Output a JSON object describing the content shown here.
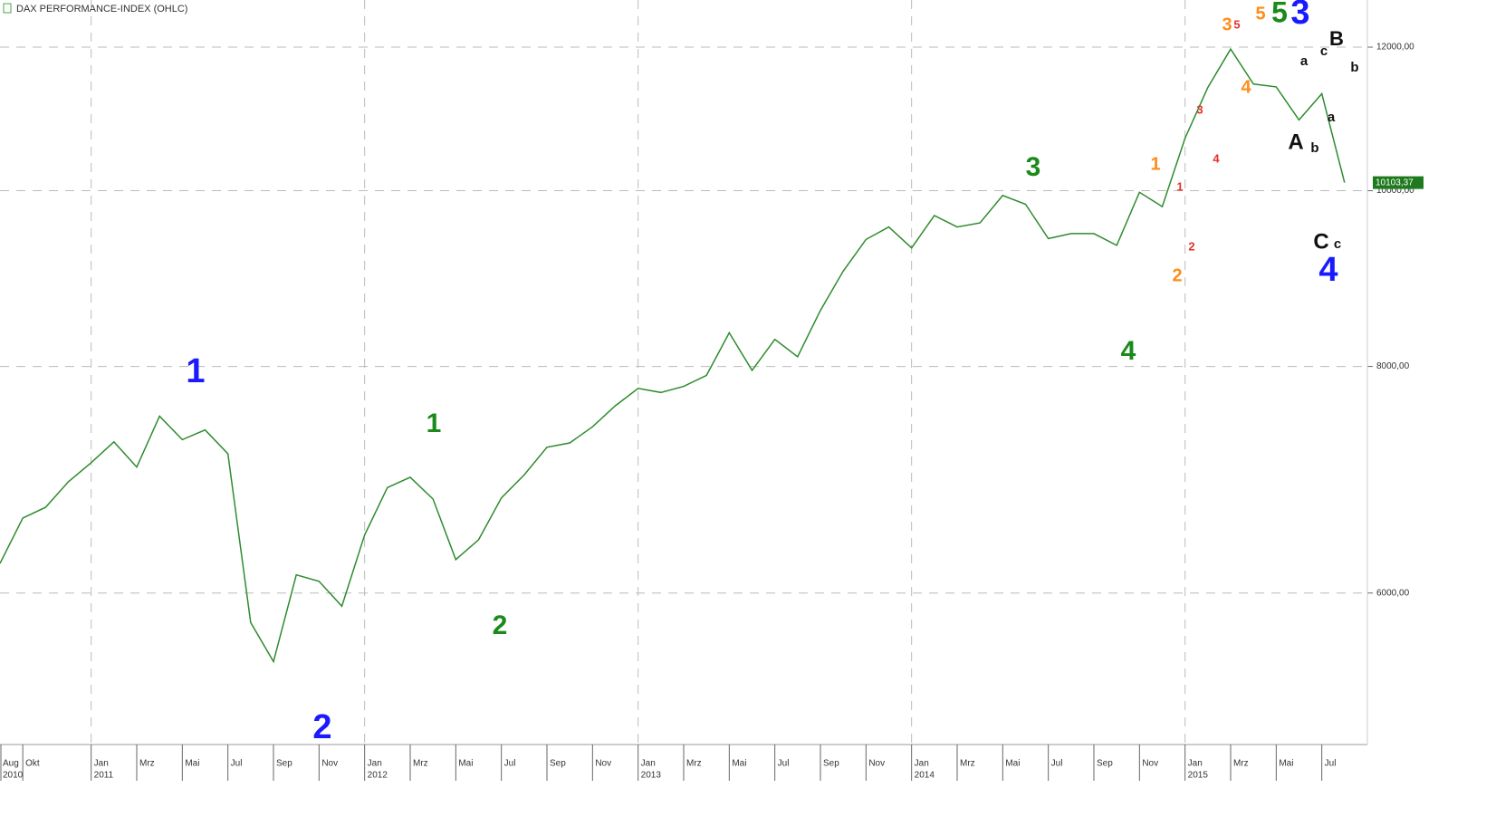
{
  "chart_data": {
    "type": "line",
    "title": "DAX PERFORMANCE-INDEX  (OHLC)",
    "x": [
      "2010-09",
      "2010-10",
      "2010-11",
      "2010-12",
      "2011-01",
      "2011-02",
      "2011-03",
      "2011-04",
      "2011-05",
      "2011-06",
      "2011-07",
      "2011-08",
      "2011-09",
      "2011-10",
      "2011-11",
      "2011-12",
      "2012-01",
      "2012-02",
      "2012-03",
      "2012-04",
      "2012-05",
      "2012-06",
      "2012-07",
      "2012-08",
      "2012-09",
      "2012-10",
      "2012-11",
      "2012-12",
      "2013-01",
      "2013-02",
      "2013-03",
      "2013-04",
      "2013-05",
      "2013-06",
      "2013-07",
      "2013-08",
      "2013-09",
      "2013-10",
      "2013-11",
      "2013-12",
      "2014-01",
      "2014-02",
      "2014-03",
      "2014-04",
      "2014-05",
      "2014-06",
      "2014-07",
      "2014-08",
      "2014-09",
      "2014-10",
      "2014-11",
      "2014-12",
      "2015-01",
      "2015-02",
      "2015-03",
      "2015-04",
      "2015-05",
      "2015-06",
      "2015-07",
      "2015-08"
    ],
    "series": [
      {
        "color": "#2e8b2e",
        "values": [
          6230,
          6600,
          6690,
          6910,
          7080,
          7270,
          7040,
          7510,
          7290,
          7380,
          7160,
          5780,
          5500,
          6140,
          6090,
          5900,
          6460,
          6860,
          6950,
          6760,
          6260,
          6420,
          6770,
          6970,
          7220,
          7260,
          7410,
          7610,
          7780,
          7740,
          7800,
          7910,
          8350,
          7960,
          8280,
          8100,
          8590,
          9030,
          9400,
          9550,
          9300,
          9690,
          9550,
          9600,
          9940,
          9830,
          9410,
          9470,
          9470,
          9330,
          9980,
          9800,
          10690,
          11400,
          11970,
          11450,
          11410,
          10940,
          11310,
          10103.37
        ]
      }
    ],
    "xlim": [
      "2010-09",
      "2015-09"
    ],
    "ylim": [
      4950,
      12740
    ],
    "log_y": true,
    "grid": true,
    "yticks": [
      {
        "value": 6000,
        "label": "6000,00"
      },
      {
        "value": 8000,
        "label": "8000,00"
      },
      {
        "value": 10000,
        "label": "10000,00"
      },
      {
        "value": 12000,
        "label": "12000,00"
      }
    ],
    "xticks": [
      {
        "value": "2010-08",
        "label": "Aug"
      },
      {
        "value": "2010-10",
        "label": "Okt"
      },
      {
        "value": "2011-01",
        "label": "Jan"
      },
      {
        "value": "2011-03",
        "label": "Mrz"
      },
      {
        "value": "2011-05",
        "label": "Mai"
      },
      {
        "value": "2011-07",
        "label": "Jul"
      },
      {
        "value": "2011-09",
        "label": "Sep"
      },
      {
        "value": "2011-11",
        "label": "Nov"
      },
      {
        "value": "2012-01",
        "label": "Jan"
      },
      {
        "value": "2012-03",
        "label": "Mrz"
      },
      {
        "value": "2012-05",
        "label": "Mai"
      },
      {
        "value": "2012-07",
        "label": "Jul"
      },
      {
        "value": "2012-09",
        "label": "Sep"
      },
      {
        "value": "2012-11",
        "label": "Nov"
      },
      {
        "value": "2013-01",
        "label": "Jan"
      },
      {
        "value": "2013-03",
        "label": "Mrz"
      },
      {
        "value": "2013-05",
        "label": "Mai"
      },
      {
        "value": "2013-07",
        "label": "Jul"
      },
      {
        "value": "2013-09",
        "label": "Sep"
      },
      {
        "value": "2013-11",
        "label": "Nov"
      },
      {
        "value": "2014-01",
        "label": "Jan"
      },
      {
        "value": "2014-03",
        "label": "Mrz"
      },
      {
        "value": "2014-05",
        "label": "Mai"
      },
      {
        "value": "2014-07",
        "label": "Jul"
      },
      {
        "value": "2014-09",
        "label": "Sep"
      },
      {
        "value": "2014-11",
        "label": "Nov"
      },
      {
        "value": "2015-01",
        "label": "Jan"
      },
      {
        "value": "2015-03",
        "label": "Mrz"
      },
      {
        "value": "2015-05",
        "label": "Mai"
      },
      {
        "value": "2015-07",
        "label": "Jul"
      }
    ],
    "year_labels": [
      {
        "value": "2010-08",
        "label": "2010"
      },
      {
        "value": "2011-01",
        "label": "2011"
      },
      {
        "value": "2012-01",
        "label": "2012"
      },
      {
        "value": "2013-01",
        "label": "2013"
      },
      {
        "value": "2014-01",
        "label": "2014"
      },
      {
        "value": "2015-01",
        "label": "2015"
      }
    ],
    "last_price": {
      "value": 10103.37,
      "label": "10103,37"
    },
    "annotations": [
      {
        "text": "1",
        "color": "#1a1aff"
      },
      {
        "text": "2",
        "color": "#1a1aff"
      },
      {
        "text": "1",
        "color": "#1a8a1a"
      },
      {
        "text": "2",
        "color": "#1a8a1a"
      },
      {
        "text": "3",
        "color": "#1a8a1a"
      },
      {
        "text": "4",
        "color": "#1a8a1a"
      },
      {
        "text": "1",
        "color": "#ff8c1a"
      },
      {
        "text": "2",
        "color": "#ff8c1a"
      },
      {
        "text": "1",
        "color": "#e8302a"
      },
      {
        "text": "2",
        "color": "#e8302a"
      },
      {
        "text": "3",
        "color": "#e8302a"
      },
      {
        "text": "4",
        "color": "#e8302a"
      },
      {
        "text": "3",
        "color": "#ff8c1a"
      },
      {
        "text": "5",
        "color": "#e8302a"
      },
      {
        "text": "4",
        "color": "#ff8c1a"
      },
      {
        "text": "5",
        "color": "#ff8c1a"
      },
      {
        "text": "5",
        "color": "#1a8a1a"
      },
      {
        "text": "3",
        "color": "#1a1aff"
      },
      {
        "text": "a",
        "color": "#111111"
      },
      {
        "text": "c",
        "color": "#111111"
      },
      {
        "text": "B",
        "color": "#111111"
      },
      {
        "text": "b",
        "color": "#111111"
      },
      {
        "text": "a",
        "color": "#111111"
      },
      {
        "text": "A",
        "color": "#111111"
      },
      {
        "text": "b",
        "color": "#111111"
      },
      {
        "text": "C",
        "color": "#111111"
      },
      {
        "text": "c",
        "color": "#111111"
      },
      {
        "text": "4",
        "color": "#1a1aff"
      }
    ]
  }
}
